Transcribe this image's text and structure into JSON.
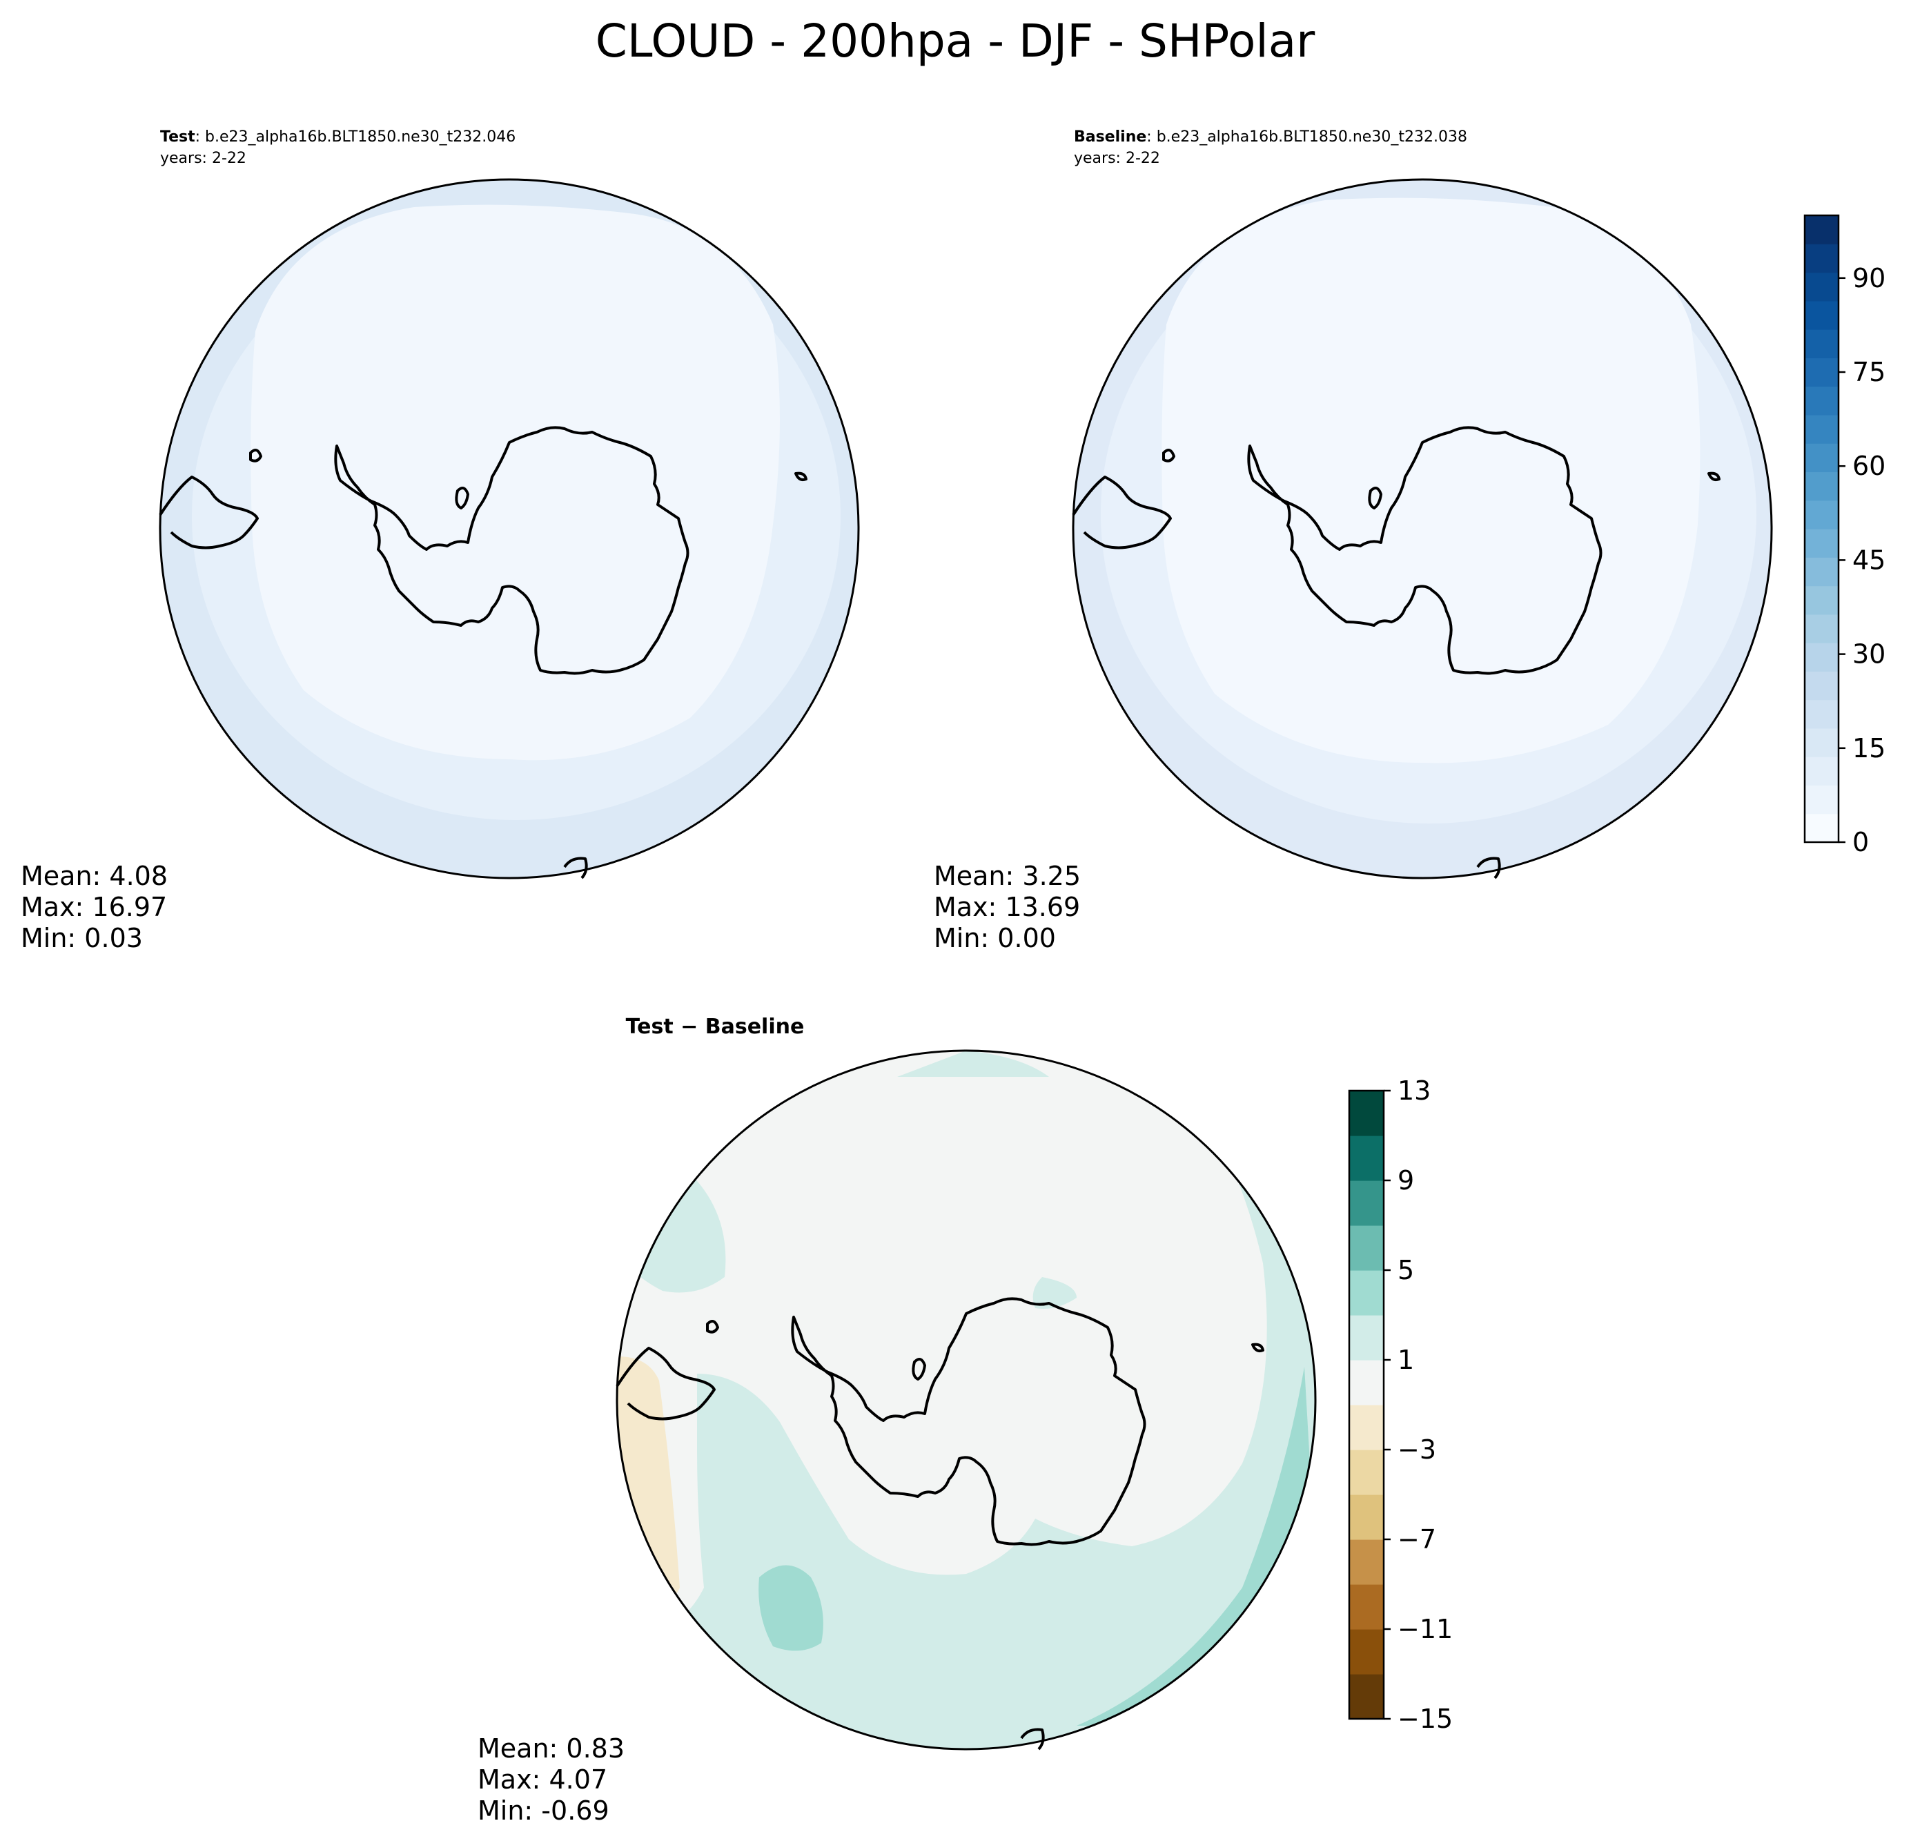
{
  "figure": {
    "title": "CLOUD - 200hpa - DJF - SHPolar"
  },
  "panels": [
    {
      "id": "test",
      "label_bold": "Test",
      "label_rest": ": b.e23_alpha16b.BLT1850.ne30_t232.046",
      "years": "years: 2-22",
      "stats": {
        "mean": "Mean:  4.08",
        "max": "Max: 16.97",
        "min": "Min:  0.03"
      },
      "colormap": "Blues"
    },
    {
      "id": "baseline",
      "label_bold": "Baseline",
      "label_rest": ": b.e23_alpha16b.BLT1850.ne30_t232.038",
      "years": "years: 2-22",
      "stats": {
        "mean": "Mean:  3.25",
        "max": "Max: 13.69",
        "min": "Min:  0.00"
      },
      "colormap": "Blues"
    },
    {
      "id": "diff",
      "label_bold": "Test − Baseline",
      "stats": {
        "mean": "Mean:  0.83",
        "max": "Max:  4.07",
        "min": "Min: -0.69"
      },
      "colormap": "BrBG"
    }
  ],
  "colorbars": {
    "abs": {
      "range": [
        0,
        100
      ],
      "ticks": [
        0,
        15,
        30,
        45,
        60,
        75,
        90
      ],
      "tick_labels": [
        "0",
        "15",
        "30",
        "45",
        "60",
        "75",
        "90"
      ],
      "colors": [
        "#f7fbff",
        "#ecf4fc",
        "#e3eef9",
        "#d9e8f5",
        "#cfe1f2",
        "#c4daee",
        "#b7d4ea",
        "#a8cee4",
        "#97c6df",
        "#86bcdc",
        "#73b2d8",
        "#62a8d3",
        "#529dcc",
        "#4391c6",
        "#3585c0",
        "#2979b9",
        "#1e6cb1",
        "#1461a8",
        "#0a559f",
        "#084a90",
        "#083e81",
        "#08306b"
      ]
    },
    "diff": {
      "range": [
        -15,
        13
      ],
      "ticks": [
        -15,
        -11,
        -7,
        -3,
        1,
        5,
        9,
        13
      ],
      "tick_labels": [
        "−15",
        "−11",
        "−7",
        "−3",
        "1",
        "5",
        "9",
        "13"
      ],
      "colors": [
        "#643b08",
        "#8a500b",
        "#ab6b22",
        "#c69149",
        "#dfc27d",
        "#ecd8a4",
        "#f5e9cd",
        "#f3f5f4",
        "#d2ece8",
        "#a0dbd1",
        "#6cbcb1",
        "#35958b",
        "#0c6f67",
        "#01493d"
      ]
    }
  },
  "map_colors": {
    "test": {
      "outer": "#dce9f6",
      "mid": "#e6f0fa",
      "inner": "#f2f7fd"
    },
    "baseline": {
      "outer": "#dfeaf7",
      "mid": "#e8f1fb",
      "inner": "#f3f8fe"
    },
    "diff": {
      "base": "#f3f5f4",
      "light_green": "#d2ece8",
      "mid_green": "#a0dbd1",
      "tan": "#f5e9cd"
    }
  }
}
